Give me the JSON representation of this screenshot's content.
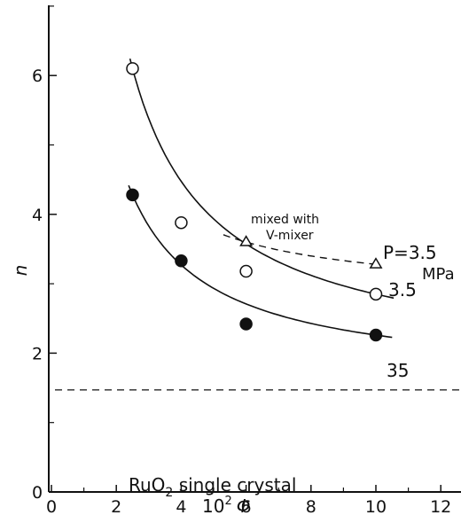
{
  "chart_data": {
    "type": "scatter",
    "title": "",
    "xlabel": "10²Φ",
    "xlabel_base": "10",
    "xlabel_exp": "2",
    "xlabel_symbol": "Φ",
    "ylabel": "n",
    "xlim": [
      0,
      13
    ],
    "ylim": [
      0,
      7
    ],
    "xticks": [
      "0",
      "2",
      "4",
      "6",
      "8",
      "10",
      "12"
    ],
    "yticks": [
      "0",
      "2",
      "4",
      "6"
    ],
    "grid": false,
    "series": [
      {
        "name": "3.5",
        "marker": "open-circle",
        "x": [
          2.5,
          4,
          6,
          10
        ],
        "y": [
          6.1,
          3.88,
          3.18,
          2.85
        ]
      },
      {
        "name": "35",
        "marker": "filled-circle",
        "x": [
          2.5,
          4,
          6,
          10
        ],
        "y": [
          4.28,
          3.33,
          2.42,
          2.26
        ]
      },
      {
        "name": "mixed with V-mixer",
        "marker": "open-triangle",
        "x": [
          6,
          10
        ],
        "y": [
          3.6,
          3.28
        ]
      }
    ],
    "reference_line": {
      "label_prefix": "RuO",
      "label_sub": "2",
      "label_suffix": " single crystal",
      "y": 1.47
    },
    "annotations": {
      "p_label": "P=3.5",
      "unit": "MPa",
      "label_35": "3.5",
      "label_350": "35",
      "mixed_line1": "mixed with",
      "mixed_line2": "V-mixer"
    }
  }
}
